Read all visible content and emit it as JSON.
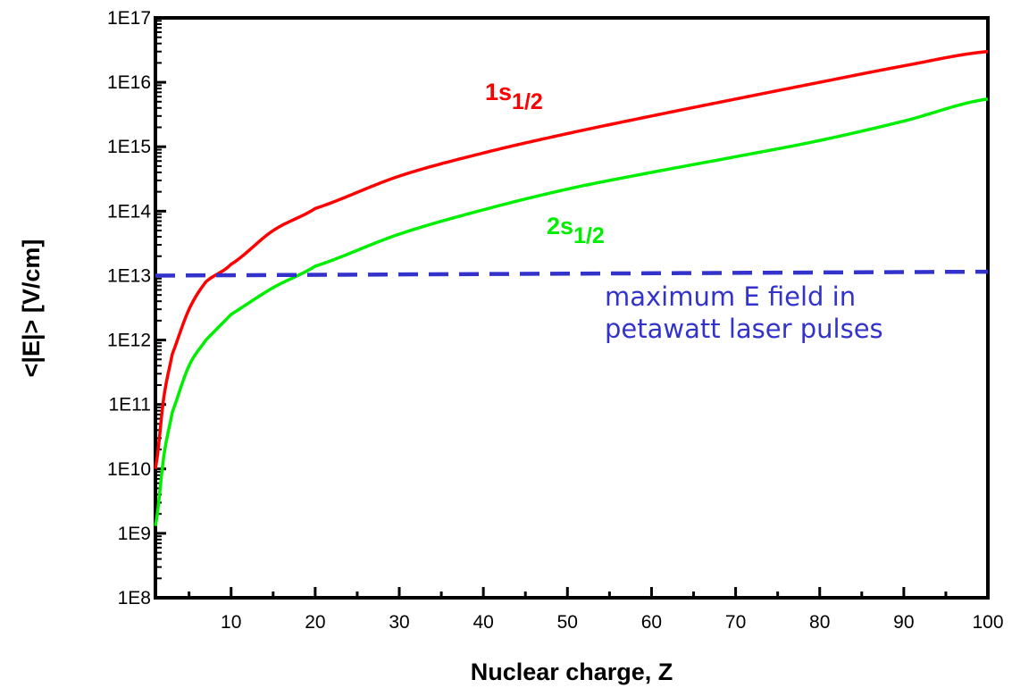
{
  "chart_data": {
    "type": "line",
    "xlabel": "Nuclear charge, Z",
    "ylabel": "<|E|> [V/cm]",
    "xlim": [
      1,
      100
    ],
    "ylim": [
      100000000.0,
      1e+17
    ],
    "yscale": "log",
    "x_ticks": [
      10,
      20,
      30,
      40,
      50,
      60,
      70,
      80,
      90,
      100
    ],
    "y_ticks": [
      "1E8",
      "1E9",
      "1E10",
      "1E11",
      "1E12",
      "1E13",
      "1E14",
      "1E15",
      "1E16",
      "1E17"
    ],
    "grid": false,
    "series": [
      {
        "name": "1s1/2",
        "label_main": "1s",
        "label_sub": "1/2",
        "color": "#ff0000",
        "style": "solid",
        "x": [
          1,
          2,
          3,
          5,
          7,
          10,
          15,
          20,
          30,
          40,
          50,
          60,
          70,
          80,
          90,
          100
        ],
        "y": [
          10000000000.0,
          130000000000.0,
          600000000000.0,
          3000000000000.0,
          8000000000000.0,
          15000000000000.0,
          50000000000000.0,
          110000000000000.0,
          350000000000000.0,
          800000000000000.0,
          1600000000000000.0,
          3000000000000000.0,
          5500000000000000.0,
          1e+16,
          1.8e+16,
          3e+16
        ]
      },
      {
        "name": "2s1/2",
        "label_main": "2s",
        "label_sub": "1/2",
        "color": "#00ee00",
        "style": "solid",
        "x": [
          1,
          2,
          3,
          5,
          7,
          10,
          15,
          20,
          30,
          40,
          50,
          60,
          70,
          80,
          90,
          100
        ],
        "y": [
          1300000000.0,
          16000000000.0,
          75000000000.0,
          400000000000.0,
          1000000000000.0,
          2500000000000.0,
          6500000000000.0,
          14000000000000.0,
          44000000000000.0,
          105000000000000.0,
          220000000000000.0,
          400000000000000.0,
          700000000000000.0,
          1250000000000000.0,
          2500000000000000.0,
          5500000000000000.0
        ]
      },
      {
        "name": "maximum E field in petawatt laser pulses",
        "color": "#3333cc",
        "style": "dashed",
        "x": [
          1,
          100
        ],
        "y": [
          10000000000000.0,
          11500000000000.0
        ]
      }
    ],
    "annotations": {
      "laser_line1": "maximum E field in",
      "laser_line2": "petawatt laser pulses"
    }
  }
}
